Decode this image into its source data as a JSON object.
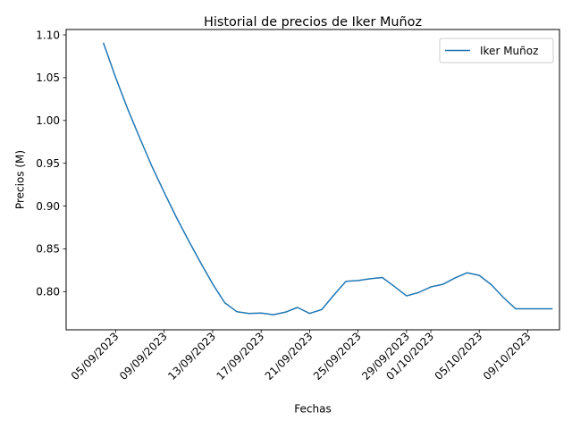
{
  "chart_data": {
    "type": "line",
    "title": "Historial de precios de Iker Muñoz",
    "xlabel": "Fechas",
    "ylabel": "Precios (M)",
    "x_day_start": "04/09/2023",
    "xlim_days": [
      -3.09,
      37.62
    ],
    "ylim": [
      0.7554,
      1.1063
    ],
    "xticks": [
      {
        "label": "05/09/2023",
        "day": 1
      },
      {
        "label": "09/09/2023",
        "day": 5
      },
      {
        "label": "13/09/2023",
        "day": 9
      },
      {
        "label": "17/09/2023",
        "day": 13
      },
      {
        "label": "21/09/2023",
        "day": 17
      },
      {
        "label": "25/09/2023",
        "day": 21
      },
      {
        "label": "29/09/2023",
        "day": 25
      },
      {
        "label": "01/10/2023",
        "day": 27
      },
      {
        "label": "05/10/2023",
        "day": 31
      },
      {
        "label": "09/10/2023",
        "day": 35
      }
    ],
    "yticks": [
      0.8,
      0.85,
      0.9,
      0.95,
      1.0,
      1.05,
      1.1
    ],
    "legend": {
      "position": "top-right"
    },
    "series": [
      {
        "name": "Iker Muñoz",
        "color": "#1f77b4",
        "x_days": [
          0,
          1,
          2,
          3,
          4,
          5,
          6,
          7,
          8,
          9,
          10,
          11,
          12,
          13,
          14,
          15,
          16,
          17,
          18,
          19,
          20,
          21,
          22,
          23,
          24,
          25,
          26,
          27,
          28,
          29,
          30,
          31,
          32,
          33,
          34,
          35,
          36,
          37
        ],
        "values": [
          1.09,
          1.05,
          1.013,
          0.979,
          0.946,
          0.916,
          0.887,
          0.86,
          0.834,
          0.809,
          0.787,
          0.7765,
          0.7745,
          0.775,
          0.773,
          0.776,
          0.7815,
          0.7745,
          0.779,
          0.796,
          0.812,
          0.813,
          0.815,
          0.8165,
          0.806,
          0.795,
          0.799,
          0.8055,
          0.8085,
          0.816,
          0.822,
          0.819,
          0.808,
          0.793,
          0.78,
          0.78,
          0.78,
          0.78
        ]
      }
    ]
  }
}
